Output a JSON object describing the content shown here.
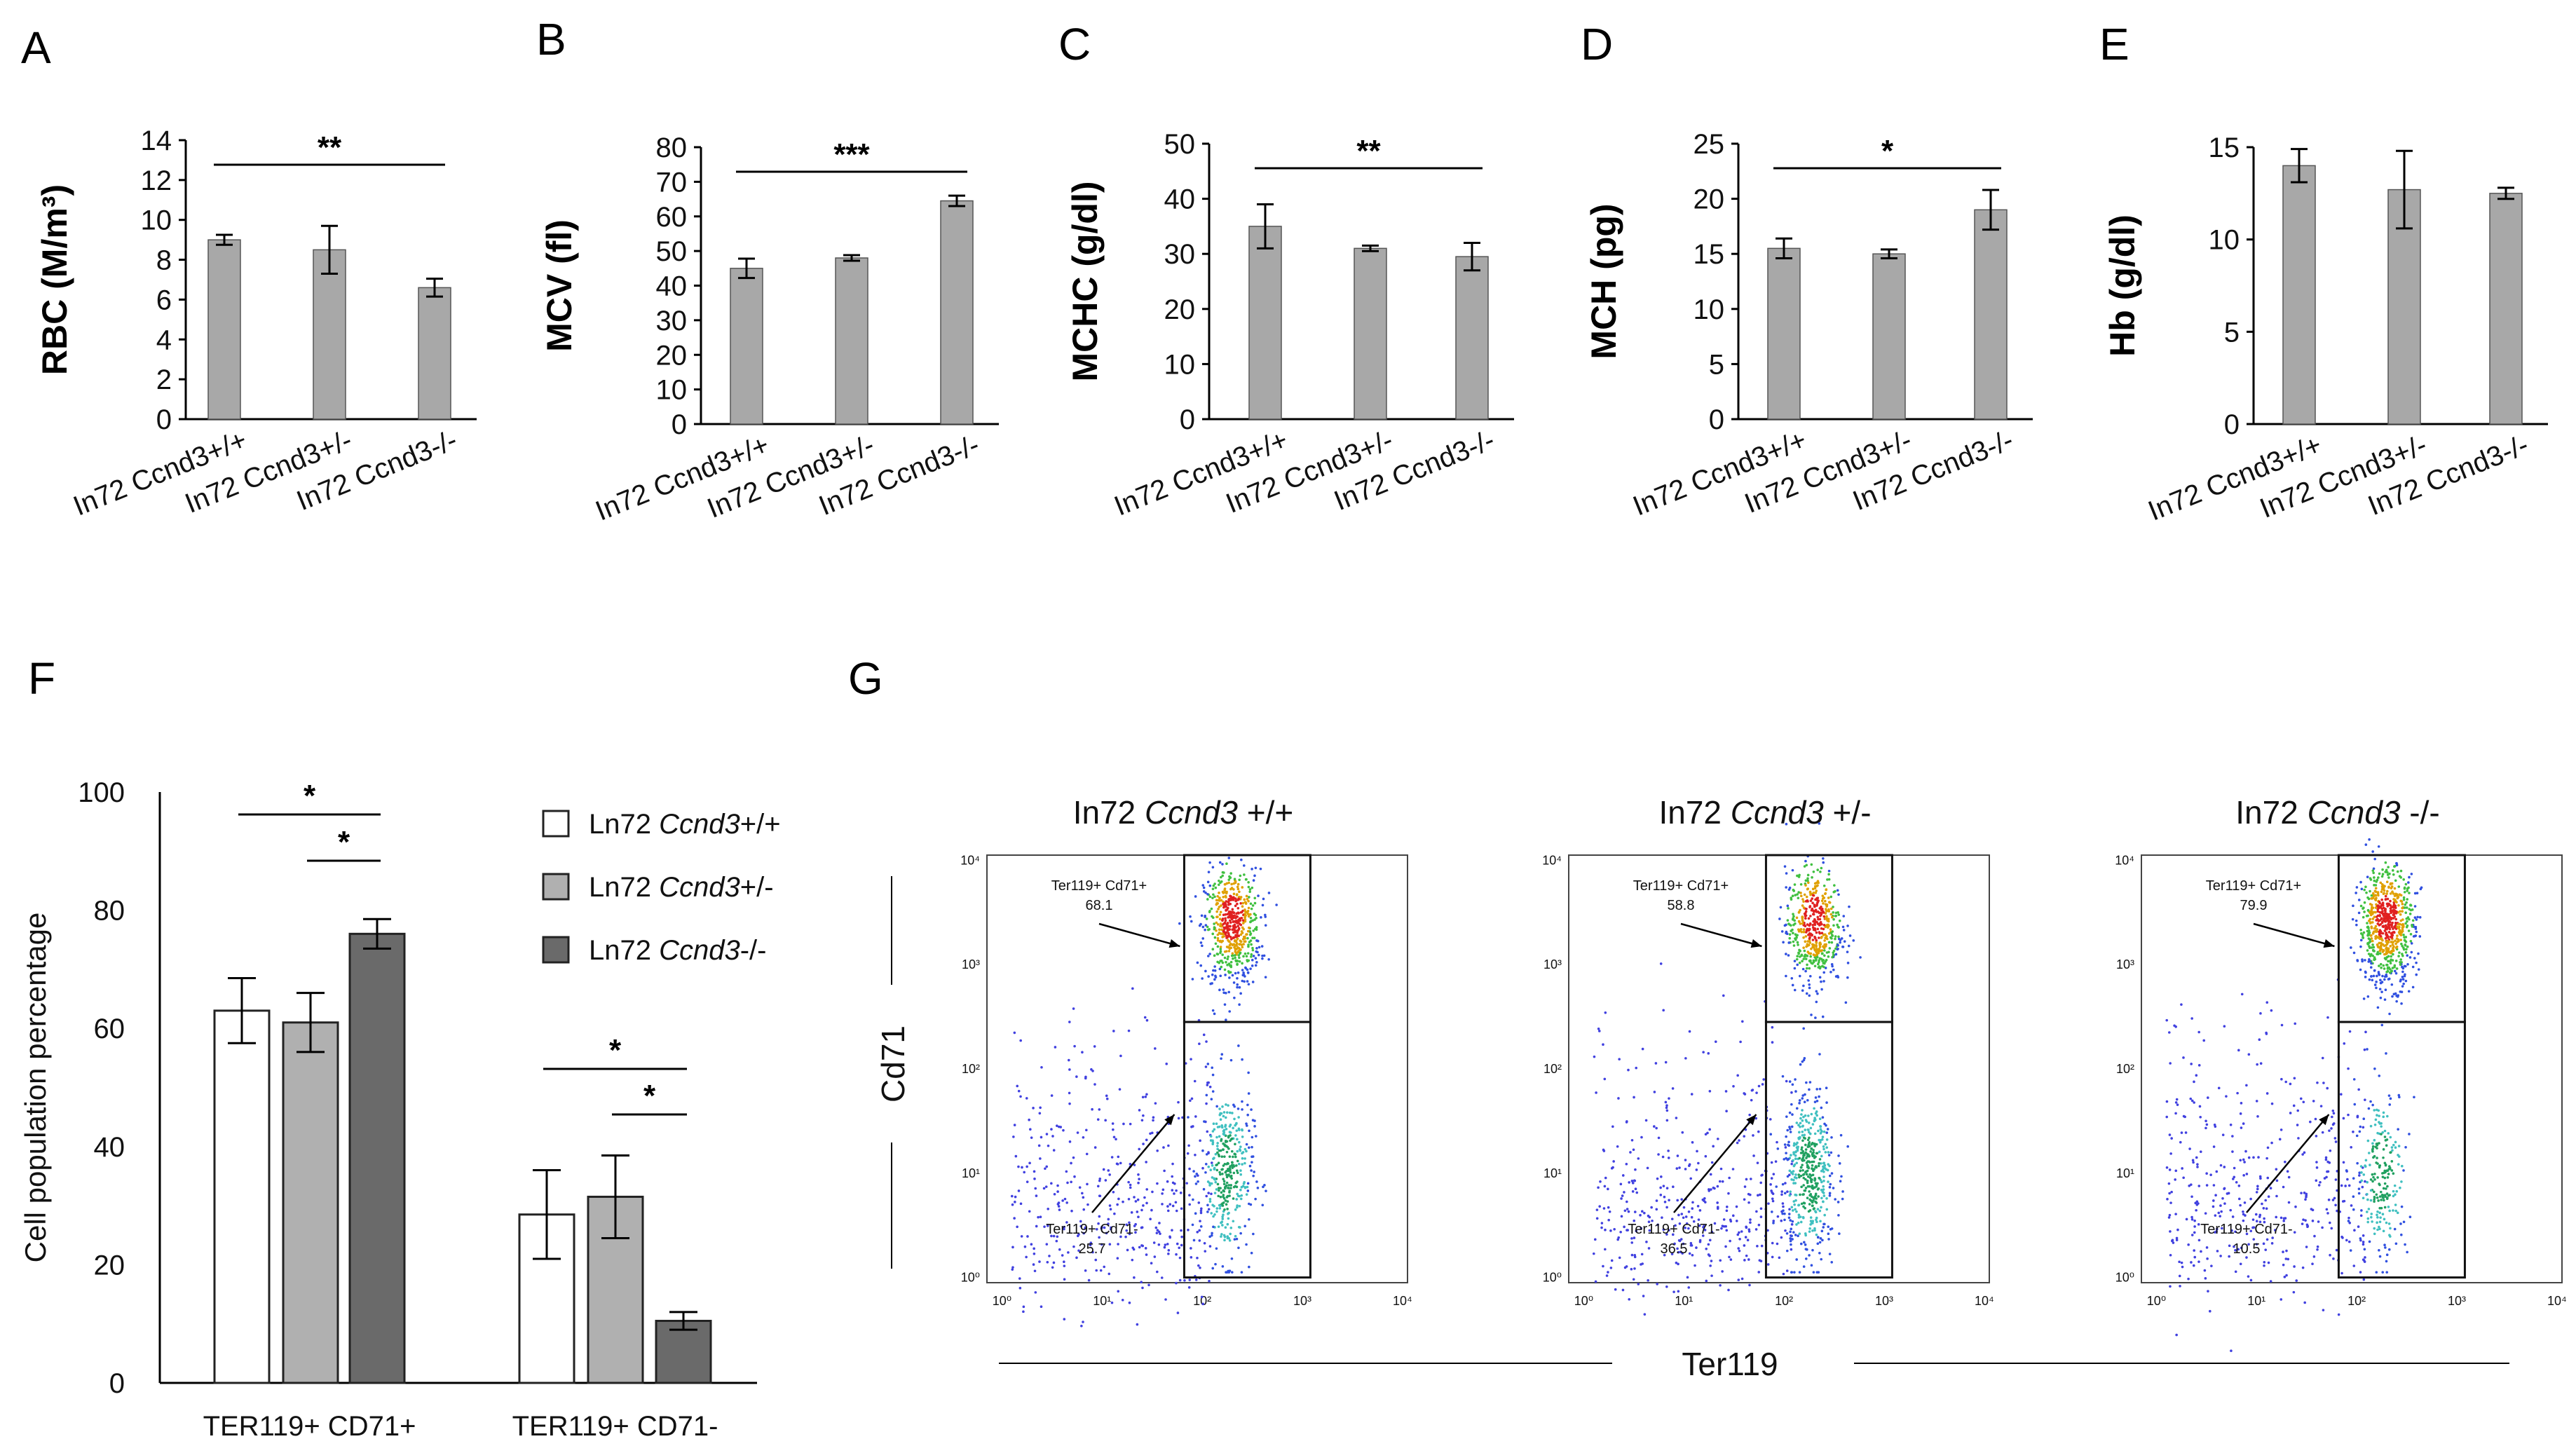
{
  "panel_letters": [
    "A",
    "B",
    "C",
    "D",
    "E",
    "F",
    "G"
  ],
  "genotype_labels": [
    "In72 Ccnd3+/+",
    "In72 Ccnd3+/-",
    "In72 Ccnd3-/-"
  ],
  "colors": {
    "bar_gray": "#a8a8a8",
    "bar_white": "#ffffff",
    "bar_light": "#b0b0b0",
    "bar_dark": "#6a6a6a"
  },
  "chart_data": [
    {
      "id": "A",
      "type": "bar",
      "ylabel": "RBC (M/m³)",
      "ylim": [
        0,
        14
      ],
      "ticks": [
        0,
        2,
        4,
        6,
        8,
        10,
        12,
        14
      ],
      "categories": [
        "In72 Ccnd3+/+",
        "In72 Ccnd3+/-",
        "In72 Ccnd3-/-"
      ],
      "values": [
        9.0,
        8.5,
        6.6
      ],
      "errors": [
        0.25,
        1.2,
        0.45
      ],
      "significance": [
        {
          "from": 0,
          "to": 2,
          "label": "**"
        }
      ]
    },
    {
      "id": "B",
      "type": "bar",
      "ylabel": "MCV (fl)",
      "ylim": [
        0,
        80
      ],
      "ticks": [
        0,
        10,
        20,
        30,
        40,
        50,
        60,
        70,
        80
      ],
      "categories": [
        "In72 Ccnd3+/+",
        "In72 Ccnd3+/-",
        "In72 Ccnd3-/-"
      ],
      "values": [
        45,
        48,
        64.5
      ],
      "errors": [
        2.8,
        0.8,
        1.5
      ],
      "significance": [
        {
          "from": 0,
          "to": 2,
          "label": "***"
        }
      ]
    },
    {
      "id": "C",
      "type": "bar",
      "ylabel": "MCHC (g/dl)",
      "ylim": [
        0,
        50
      ],
      "ticks": [
        0,
        10,
        20,
        30,
        40,
        50
      ],
      "categories": [
        "In72 Ccnd3+/+",
        "In72 Ccnd3+/-",
        "In72 Ccnd3-/-"
      ],
      "values": [
        35,
        31,
        29.5
      ],
      "errors": [
        4,
        0.5,
        2.5
      ],
      "significance": [
        {
          "from": 0,
          "to": 2,
          "label": "**"
        }
      ]
    },
    {
      "id": "D",
      "type": "bar",
      "ylabel": "MCH (pg)",
      "ylim": [
        0,
        25
      ],
      "ticks": [
        0,
        5,
        10,
        15,
        20,
        25
      ],
      "categories": [
        "In72 Ccnd3+/+",
        "In72 Ccnd3+/-",
        "In72 Ccnd3-/-"
      ],
      "values": [
        15.5,
        15,
        19
      ],
      "errors": [
        0.9,
        0.4,
        1.8
      ],
      "significance": [
        {
          "from": 0,
          "to": 2,
          "label": "*"
        }
      ]
    },
    {
      "id": "E",
      "type": "bar",
      "ylabel": "Hb (g/dl)",
      "ylim": [
        0,
        15
      ],
      "ticks": [
        0,
        5,
        10,
        15
      ],
      "categories": [
        "In72 Ccnd3+/+",
        "In72 Ccnd3+/-",
        "In72 Ccnd3-/-"
      ],
      "values": [
        14,
        12.7,
        12.5
      ],
      "errors": [
        0.9,
        2.1,
        0.3
      ],
      "significance": []
    },
    {
      "id": "F",
      "type": "bar",
      "ylabel": "Cell population  percentage",
      "ylim": [
        0,
        100
      ],
      "ticks": [
        0,
        20,
        40,
        60,
        80,
        100
      ],
      "categories": [
        "TER119+ CD71+",
        "TER119+ CD71-"
      ],
      "series": [
        {
          "name": "Ln72 Ccnd3+/+",
          "prefix": "Ln72 ",
          "italic": "Ccnd3",
          "suffix": "+/+",
          "values": [
            63,
            28.5
          ],
          "errors": [
            5.5,
            7.5
          ]
        },
        {
          "name": "Ln72 Ccnd3+/-",
          "prefix": "Ln72 ",
          "italic": "Ccnd3",
          "suffix": "+/-",
          "values": [
            61,
            31.5
          ],
          "errors": [
            5,
            7
          ]
        },
        {
          "name": "Ln72 Ccnd3-/-",
          "prefix": "Ln72 ",
          "italic": "Ccnd3",
          "suffix": "-/-",
          "values": [
            76,
            10.5
          ],
          "errors": [
            2.5,
            1.5
          ]
        }
      ],
      "significance": [
        {
          "group": 0,
          "from": 0,
          "to": 2,
          "label": "*"
        },
        {
          "group": 0,
          "from": 1,
          "to": 2,
          "label": "*"
        },
        {
          "group": 1,
          "from": 0,
          "to": 2,
          "label": "*"
        },
        {
          "group": 1,
          "from": 1,
          "to": 2,
          "label": "*"
        }
      ]
    }
  ],
  "flow": {
    "y_axis_label": "Cd71",
    "x_axis_label": "Ter119",
    "tick_labels": [
      "10⁰",
      "10¹",
      "10²",
      "10³",
      "10⁴"
    ],
    "gate_upper_name": "Ter119+ Cd71+",
    "gate_lower_name": "Ter119+ Cd71-",
    "plots": [
      {
        "title_prefix": "In72 ",
        "title_italic": "Ccnd3",
        "title_suffix": " +/+",
        "upper_pct": "68.1",
        "lower_pct": "25.7"
      },
      {
        "title_prefix": "In72 ",
        "title_italic": "Ccnd3",
        "title_suffix": " +/-",
        "upper_pct": "58.8",
        "lower_pct": "36.5"
      },
      {
        "title_prefix": "In72 ",
        "title_italic": "Ccnd3",
        "title_suffix": " -/-",
        "upper_pct": "79.9",
        "lower_pct": "10.5"
      }
    ]
  }
}
